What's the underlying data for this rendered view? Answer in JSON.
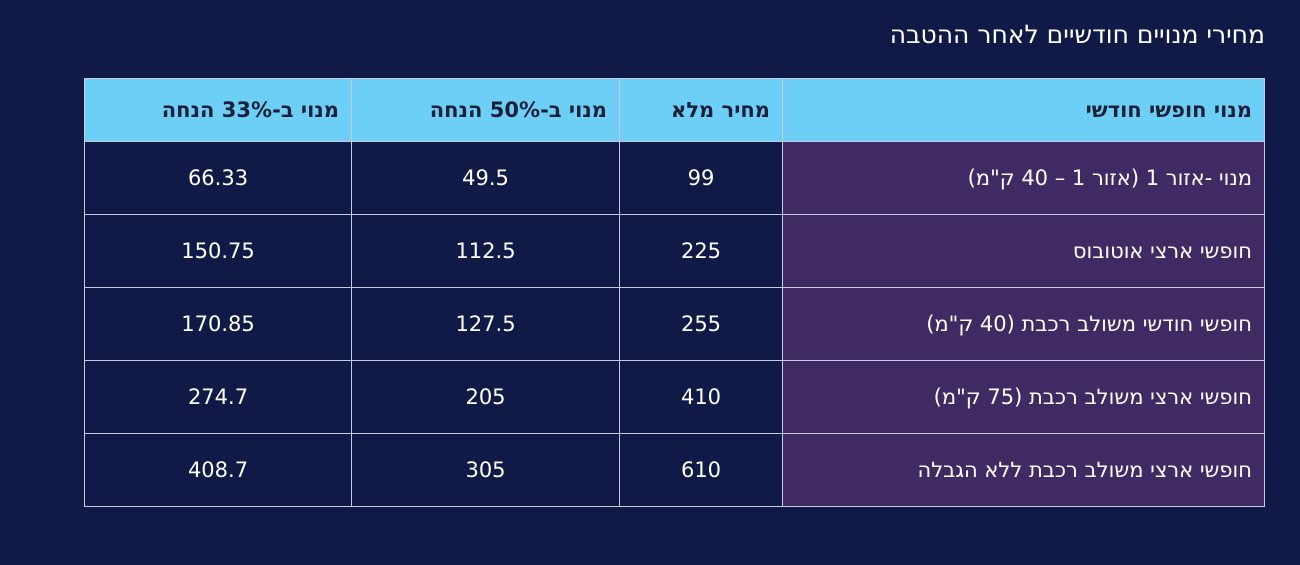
{
  "header": {
    "title": "מחירי מנויים חודשיים לאחר ההטבה"
  },
  "table": {
    "columns": [
      "מנוי חופשי חודשי",
      "מחיר מלא",
      "מנוי ב-50% הנחה",
      "מנוי ב-33% הנחה"
    ],
    "rows": [
      [
        "מנוי -אזור 1 (אזור 1 – 40 ק\"מ)",
        "99",
        "49.5",
        "66.33"
      ],
      [
        "חופשי ארצי אוטובוס",
        "225",
        "112.5",
        "150.75"
      ],
      [
        "חופשי חודשי משולב רכבת (40 ק\"מ)",
        "255",
        "127.5",
        "170.85"
      ],
      [
        "חופשי ארצי משולב רכבת (75 ק\"מ)",
        "410",
        "205",
        "274.7"
      ],
      [
        "חופשי ארצי משולב רכבת ללא הגבלה",
        "610",
        "305",
        "408.7"
      ]
    ]
  }
}
